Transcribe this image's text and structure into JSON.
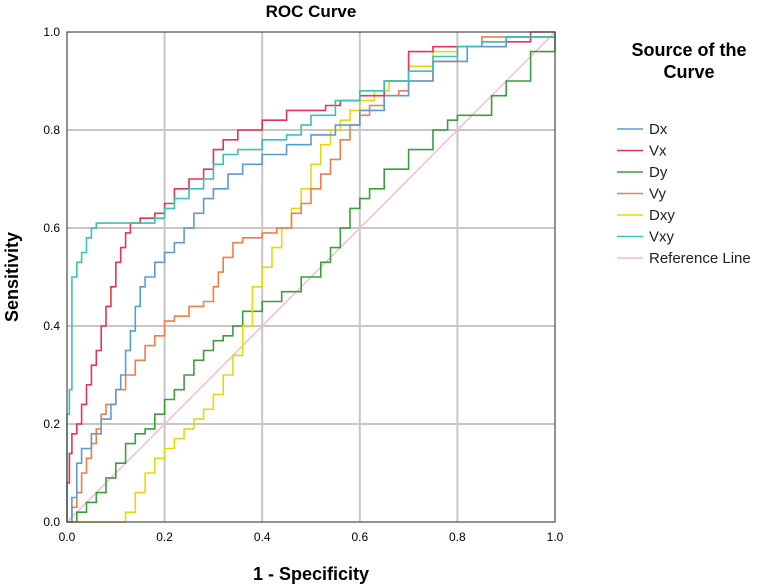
{
  "chart_data": {
    "type": "line",
    "title": "ROC Curve",
    "xlabel": "1 - Specificity",
    "ylabel": "Sensitivity",
    "xlim": [
      0,
      1
    ],
    "ylim": [
      0,
      1
    ],
    "grid": true,
    "xticks": [
      "0.0",
      "0.2",
      "0.4",
      "0.6",
      "0.8",
      "1.0"
    ],
    "yticks": [
      "0.0",
      "0.2",
      "0.4",
      "0.6",
      "0.8",
      "1.0"
    ],
    "legend": {
      "title": "Source of the Curve",
      "placement": "right"
    },
    "series": [
      {
        "name": "Dx",
        "color": "#5b9bd5",
        "points": [
          [
            0,
            0
          ],
          [
            0.01,
            0.05
          ],
          [
            0.02,
            0.12
          ],
          [
            0.03,
            0.15
          ],
          [
            0.05,
            0.18
          ],
          [
            0.07,
            0.21
          ],
          [
            0.09,
            0.24
          ],
          [
            0.1,
            0.27
          ],
          [
            0.11,
            0.3
          ],
          [
            0.12,
            0.35
          ],
          [
            0.13,
            0.39
          ],
          [
            0.14,
            0.44
          ],
          [
            0.15,
            0.48
          ],
          [
            0.16,
            0.5
          ],
          [
            0.18,
            0.53
          ],
          [
            0.2,
            0.55
          ],
          [
            0.22,
            0.57
          ],
          [
            0.24,
            0.6
          ],
          [
            0.26,
            0.63
          ],
          [
            0.28,
            0.66
          ],
          [
            0.3,
            0.68
          ],
          [
            0.33,
            0.71
          ],
          [
            0.36,
            0.73
          ],
          [
            0.4,
            0.75
          ],
          [
            0.45,
            0.77
          ],
          [
            0.5,
            0.79
          ],
          [
            0.55,
            0.81
          ],
          [
            0.6,
            0.84
          ],
          [
            0.65,
            0.87
          ],
          [
            0.7,
            0.9
          ],
          [
            0.75,
            0.94
          ],
          [
            0.82,
            0.97
          ],
          [
            0.9,
            0.99
          ],
          [
            1,
            1
          ]
        ]
      },
      {
        "name": "Vx",
        "color": "#e8344e",
        "points": [
          [
            0,
            0
          ],
          [
            0,
            0.08
          ],
          [
            0.005,
            0.14
          ],
          [
            0.01,
            0.18
          ],
          [
            0.02,
            0.2
          ],
          [
            0.03,
            0.24
          ],
          [
            0.04,
            0.28
          ],
          [
            0.05,
            0.32
          ],
          [
            0.06,
            0.35
          ],
          [
            0.07,
            0.4
          ],
          [
            0.08,
            0.44
          ],
          [
            0.09,
            0.48
          ],
          [
            0.1,
            0.53
          ],
          [
            0.11,
            0.56
          ],
          [
            0.12,
            0.59
          ],
          [
            0.13,
            0.61
          ],
          [
            0.15,
            0.62
          ],
          [
            0.18,
            0.63
          ],
          [
            0.2,
            0.65
          ],
          [
            0.22,
            0.68
          ],
          [
            0.25,
            0.7
          ],
          [
            0.28,
            0.72
          ],
          [
            0.3,
            0.76
          ],
          [
            0.32,
            0.78
          ],
          [
            0.35,
            0.8
          ],
          [
            0.4,
            0.82
          ],
          [
            0.45,
            0.84
          ],
          [
            0.5,
            0.84
          ],
          [
            0.53,
            0.85
          ],
          [
            0.56,
            0.86
          ],
          [
            0.6,
            0.87
          ],
          [
            0.65,
            0.9
          ],
          [
            0.7,
            0.96
          ],
          [
            0.75,
            0.97
          ],
          [
            0.85,
            0.98
          ],
          [
            0.95,
            1
          ],
          [
            1,
            1
          ]
        ]
      },
      {
        "name": "Dy",
        "color": "#3b9e3b",
        "points": [
          [
            0,
            0
          ],
          [
            0.02,
            0.02
          ],
          [
            0.04,
            0.04
          ],
          [
            0.06,
            0.06
          ],
          [
            0.08,
            0.09
          ],
          [
            0.1,
            0.12
          ],
          [
            0.12,
            0.16
          ],
          [
            0.14,
            0.18
          ],
          [
            0.16,
            0.19
          ],
          [
            0.18,
            0.22
          ],
          [
            0.2,
            0.25
          ],
          [
            0.22,
            0.27
          ],
          [
            0.24,
            0.3
          ],
          [
            0.26,
            0.33
          ],
          [
            0.28,
            0.35
          ],
          [
            0.3,
            0.37
          ],
          [
            0.32,
            0.38
          ],
          [
            0.34,
            0.4
          ],
          [
            0.36,
            0.43
          ],
          [
            0.4,
            0.45
          ],
          [
            0.44,
            0.47
          ],
          [
            0.48,
            0.5
          ],
          [
            0.52,
            0.53
          ],
          [
            0.54,
            0.56
          ],
          [
            0.56,
            0.6
          ],
          [
            0.58,
            0.64
          ],
          [
            0.6,
            0.66
          ],
          [
            0.62,
            0.68
          ],
          [
            0.65,
            0.72
          ],
          [
            0.7,
            0.76
          ],
          [
            0.75,
            0.8
          ],
          [
            0.78,
            0.82
          ],
          [
            0.8,
            0.83
          ],
          [
            0.84,
            0.83
          ],
          [
            0.87,
            0.87
          ],
          [
            0.9,
            0.9
          ],
          [
            0.95,
            0.96
          ],
          [
            1,
            1
          ]
        ]
      },
      {
        "name": "Vy",
        "color": "#f07e4a",
        "points": [
          [
            0,
            0
          ],
          [
            0.01,
            0.03
          ],
          [
            0.02,
            0.06
          ],
          [
            0.03,
            0.1
          ],
          [
            0.04,
            0.13
          ],
          [
            0.05,
            0.16
          ],
          [
            0.06,
            0.19
          ],
          [
            0.07,
            0.22
          ],
          [
            0.08,
            0.24
          ],
          [
            0.1,
            0.27
          ],
          [
            0.12,
            0.3
          ],
          [
            0.14,
            0.33
          ],
          [
            0.16,
            0.36
          ],
          [
            0.18,
            0.38
          ],
          [
            0.2,
            0.41
          ],
          [
            0.22,
            0.42
          ],
          [
            0.25,
            0.44
          ],
          [
            0.28,
            0.45
          ],
          [
            0.3,
            0.48
          ],
          [
            0.31,
            0.51
          ],
          [
            0.32,
            0.54
          ],
          [
            0.34,
            0.57
          ],
          [
            0.36,
            0.58
          ],
          [
            0.4,
            0.59
          ],
          [
            0.43,
            0.6
          ],
          [
            0.46,
            0.63
          ],
          [
            0.48,
            0.65
          ],
          [
            0.5,
            0.68
          ],
          [
            0.52,
            0.71
          ],
          [
            0.54,
            0.74
          ],
          [
            0.56,
            0.78
          ],
          [
            0.58,
            0.81
          ],
          [
            0.6,
            0.83
          ],
          [
            0.62,
            0.85
          ],
          [
            0.65,
            0.87
          ],
          [
            0.68,
            0.88
          ],
          [
            0.7,
            0.9
          ],
          [
            0.75,
            0.94
          ],
          [
            0.8,
            0.97
          ],
          [
            0.85,
            0.99
          ],
          [
            1,
            1
          ]
        ]
      },
      {
        "name": "Dxy",
        "color": "#e6d80f",
        "points": [
          [
            0,
            0
          ],
          [
            0.05,
            0
          ],
          [
            0.1,
            0
          ],
          [
            0.12,
            0.02
          ],
          [
            0.14,
            0.06
          ],
          [
            0.16,
            0.1
          ],
          [
            0.18,
            0.13
          ],
          [
            0.2,
            0.15
          ],
          [
            0.22,
            0.17
          ],
          [
            0.24,
            0.19
          ],
          [
            0.26,
            0.21
          ],
          [
            0.28,
            0.23
          ],
          [
            0.3,
            0.26
          ],
          [
            0.32,
            0.3
          ],
          [
            0.34,
            0.34
          ],
          [
            0.36,
            0.4
          ],
          [
            0.38,
            0.48
          ],
          [
            0.4,
            0.52
          ],
          [
            0.42,
            0.56
          ],
          [
            0.44,
            0.6
          ],
          [
            0.46,
            0.64
          ],
          [
            0.48,
            0.68
          ],
          [
            0.5,
            0.73
          ],
          [
            0.52,
            0.77
          ],
          [
            0.54,
            0.8
          ],
          [
            0.56,
            0.82
          ],
          [
            0.58,
            0.84
          ],
          [
            0.6,
            0.86
          ],
          [
            0.63,
            0.88
          ],
          [
            0.66,
            0.9
          ],
          [
            0.7,
            0.93
          ],
          [
            0.75,
            0.96
          ],
          [
            0.8,
            0.97
          ],
          [
            0.9,
            0.99
          ],
          [
            1,
            1
          ]
        ]
      },
      {
        "name": "Vxy",
        "color": "#36c4b8",
        "points": [
          [
            0,
            0
          ],
          [
            0,
            0.22
          ],
          [
            0.005,
            0.27
          ],
          [
            0.01,
            0.5
          ],
          [
            0.02,
            0.53
          ],
          [
            0.03,
            0.55
          ],
          [
            0.04,
            0.58
          ],
          [
            0.05,
            0.6
          ],
          [
            0.06,
            0.61
          ],
          [
            0.1,
            0.61
          ],
          [
            0.14,
            0.61
          ],
          [
            0.18,
            0.62
          ],
          [
            0.2,
            0.64
          ],
          [
            0.22,
            0.66
          ],
          [
            0.25,
            0.68
          ],
          [
            0.28,
            0.7
          ],
          [
            0.3,
            0.73
          ],
          [
            0.32,
            0.75
          ],
          [
            0.35,
            0.76
          ],
          [
            0.4,
            0.78
          ],
          [
            0.45,
            0.79
          ],
          [
            0.48,
            0.81
          ],
          [
            0.5,
            0.83
          ],
          [
            0.55,
            0.86
          ],
          [
            0.6,
            0.88
          ],
          [
            0.65,
            0.9
          ],
          [
            0.7,
            0.92
          ],
          [
            0.75,
            0.95
          ],
          [
            0.8,
            0.97
          ],
          [
            0.85,
            0.98
          ],
          [
            0.9,
            0.99
          ],
          [
            1,
            1
          ]
        ]
      },
      {
        "name": "Reference Line",
        "color": "#f5b8cf",
        "points": [
          [
            0,
            0
          ],
          [
            1,
            1
          ]
        ]
      }
    ]
  }
}
